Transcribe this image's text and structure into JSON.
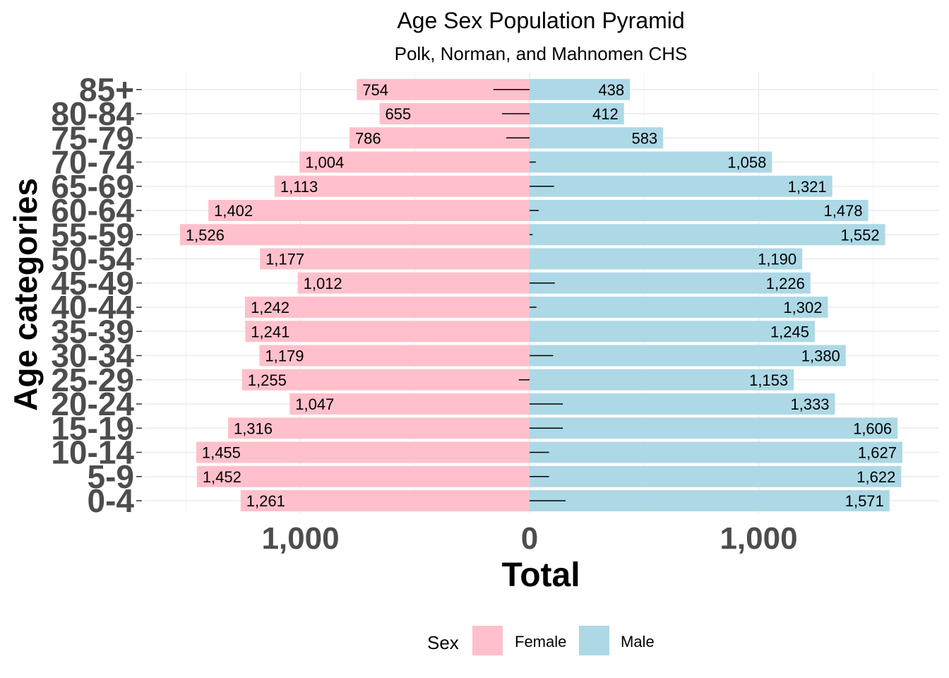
{
  "chart_data": {
    "type": "bar",
    "orientation": "horizontal",
    "layout": "population-pyramid",
    "title": "Age Sex Population Pyramid",
    "subtitle": "Polk, Norman, and Mahnomen CHS",
    "xlabel": "Total",
    "ylabel": "Age categories",
    "xlim": [
      -1500,
      1620
    ],
    "xticks": [
      {
        "value": -1000,
        "label": "1,000"
      },
      {
        "value": 0,
        "label": "0"
      },
      {
        "value": 1000,
        "label": "1,000"
      }
    ],
    "categories": [
      "0-4",
      "5-9",
      "10-14",
      "15-19",
      "20-24",
      "25-29",
      "30-34",
      "35-39",
      "40-44",
      "45-49",
      "50-54",
      "55-59",
      "60-64",
      "65-69",
      "70-74",
      "75-79",
      "80-84",
      "85+"
    ],
    "series": [
      {
        "name": "Female",
        "color": "#ffc0cb",
        "values": [
          1261,
          1452,
          1455,
          1316,
          1047,
          1255,
          1179,
          1241,
          1242,
          1012,
          1177,
          1526,
          1402,
          1113,
          1004,
          786,
          655,
          754
        ],
        "labels": [
          "1,261",
          "1,452",
          "1,455",
          "1,316",
          "1,047",
          "1,255",
          "1,179",
          "1,241",
          "1,242",
          "1,012",
          "1,177",
          "1,526",
          "1,402",
          "1,113",
          "1,004",
          "786",
          "655",
          "754"
        ]
      },
      {
        "name": "Male",
        "color": "#add8e6",
        "values": [
          1571,
          1622,
          1627,
          1606,
          1333,
          1153,
          1380,
          1245,
          1302,
          1226,
          1190,
          1552,
          1478,
          1321,
          1058,
          583,
          412,
          438
        ],
        "labels": [
          "1,571",
          "1,622",
          "1,627",
          "1,606",
          "1,333",
          "1,153",
          "1,380",
          "1,245",
          "1,302",
          "1,226",
          "1,190",
          "1,552",
          "1,478",
          "1,321",
          "1,058",
          "583",
          "412",
          "438"
        ]
      }
    ],
    "difference_lines": [
      157,
      85,
      85,
      145,
      145,
      -47,
      103,
      0,
      30,
      110,
      0,
      13,
      40,
      107,
      27,
      -102,
      -120,
      -158
    ],
    "legend": {
      "title": "Sex",
      "position": "bottom",
      "entries": [
        "Female",
        "Male"
      ]
    },
    "grid": true
  }
}
